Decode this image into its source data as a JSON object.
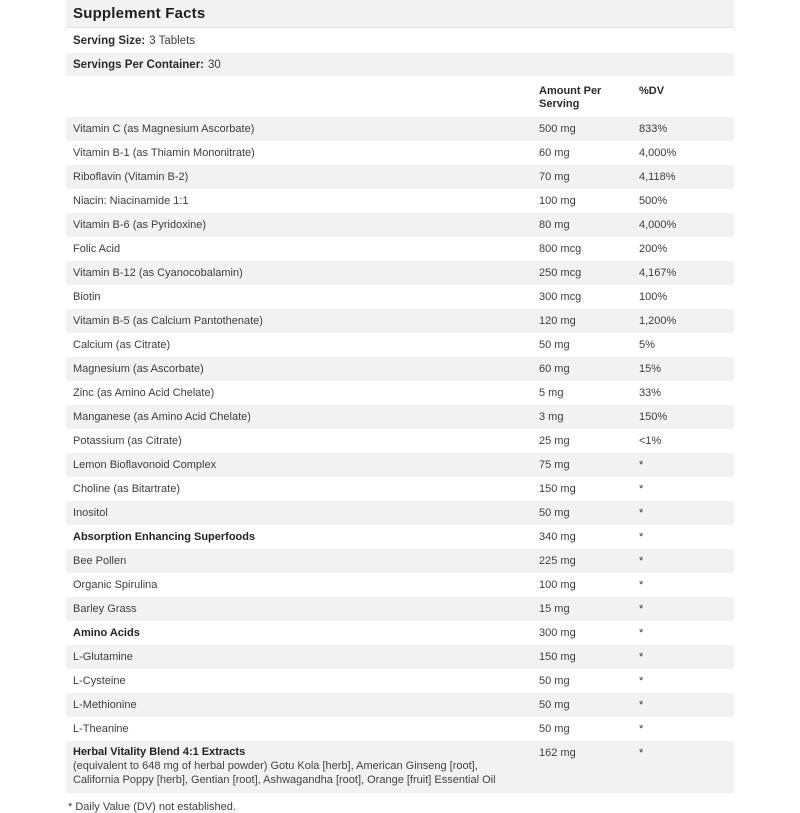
{
  "label": {
    "title": "Supplement Facts",
    "serving_size_label": "Serving Size:",
    "serving_size_value": "3 Tablets",
    "servings_per_container_label": "Servings Per Container:",
    "servings_per_container_value": "30",
    "columns": {
      "amount": "Amount Per Serving",
      "dv": "%DV"
    },
    "rows": [
      {
        "name": "Vitamin C (as Magnesium Ascorbate)",
        "amount": "500 mg",
        "dv": "833%",
        "bold": false
      },
      {
        "name": "Vitamin B-1 (as Thiamin Mononitrate)",
        "amount": "60 mg",
        "dv": "4,000%",
        "bold": false
      },
      {
        "name": "Riboflavin (Vitamin B-2)",
        "amount": "70 mg",
        "dv": "4,118%",
        "bold": false
      },
      {
        "name": "Niacin: Niacinamide 1:1",
        "amount": "100 mg",
        "dv": "500%",
        "bold": false
      },
      {
        "name": "Vitamin B-6 (as Pyridoxine)",
        "amount": "80 mg",
        "dv": "4,000%",
        "bold": false
      },
      {
        "name": "Folic Acid",
        "amount": "800 mcg",
        "dv": "200%",
        "bold": false
      },
      {
        "name": "Vitamin B-12 (as Cyanocobalamin)",
        "amount": "250 mcg",
        "dv": "4,167%",
        "bold": false
      },
      {
        "name": "Biotin",
        "amount": "300 mcg",
        "dv": "100%",
        "bold": false
      },
      {
        "name": "Vitamin B-5 (as Calcium Pantothenate)",
        "amount": "120 mg",
        "dv": "1,200%",
        "bold": false
      },
      {
        "name": "Calcium (as Citrate)",
        "amount": "50 mg",
        "dv": "5%",
        "bold": false
      },
      {
        "name": "Magnesium (as Ascorbate)",
        "amount": "60 mg",
        "dv": "15%",
        "bold": false
      },
      {
        "name": "Zinc (as Amino Acid Chelate)",
        "amount": "5 mg",
        "dv": "33%",
        "bold": false
      },
      {
        "name": "Manganese (as Amino Acid Chelate)",
        "amount": "3 mg",
        "dv": "150%",
        "bold": false
      },
      {
        "name": "Potassium (as Citrate)",
        "amount": "25 mg",
        "dv": "<1%",
        "bold": false
      },
      {
        "name": "Lemon Bioflavonoid Complex",
        "amount": "75 mg",
        "dv": "*",
        "bold": false
      },
      {
        "name": "Choline (as Bitartrate)",
        "amount": "150 mg",
        "dv": "*",
        "bold": false
      },
      {
        "name": "Inositol",
        "amount": "50 mg",
        "dv": "*",
        "bold": false
      },
      {
        "name": "Absorption Enhancing Superfoods",
        "amount": "340 mg",
        "dv": "*",
        "bold": true
      },
      {
        "name": "Bee Pollen",
        "amount": "225 mg",
        "dv": "*",
        "bold": false
      },
      {
        "name": "Organic Spirulina",
        "amount": "100 mg",
        "dv": "*",
        "bold": false
      },
      {
        "name": "Barley Grass",
        "amount": "15 mg",
        "dv": "*",
        "bold": false
      },
      {
        "name": "Amino Acids",
        "amount": "300 mg",
        "dv": "*",
        "bold": true
      },
      {
        "name": "L-Glutamine",
        "amount": "150 mg",
        "dv": "*",
        "bold": false
      },
      {
        "name": "L-Cysteine",
        "amount": "50 mg",
        "dv": "*",
        "bold": false
      },
      {
        "name": "L-Methionine",
        "amount": "50 mg",
        "dv": "*",
        "bold": false
      },
      {
        "name": "L-Theanine",
        "amount": "50 mg",
        "dv": "*",
        "bold": false
      },
      {
        "name": "Herbal Vitality Blend 4:1 Extracts",
        "amount": "162 mg",
        "dv": "*",
        "bold": true,
        "desc": "(equivalent to 648 mg of herbal powder) Gotu Kola [herb], American Ginseng [root], California Poppy [herb], Gentian [root], Ashwagandha [root], Orange [fruit] Essential Oil"
      }
    ],
    "footnote": "* Daily Value (DV) not established."
  },
  "colors": {
    "stripe": "#f2f2f2",
    "background": "#ffffff",
    "text": "#3d3d3d"
  }
}
